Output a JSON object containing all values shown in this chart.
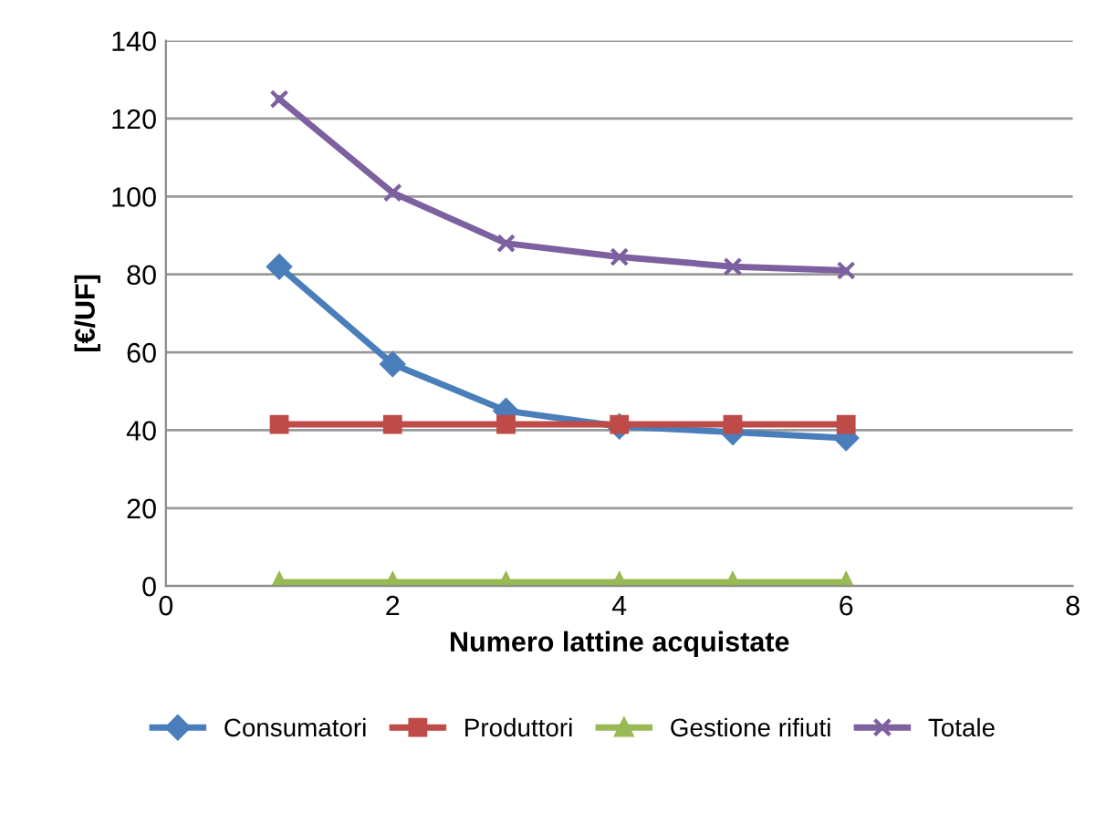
{
  "chart_data": {
    "type": "line",
    "xlabel": "Numero lattine acquistate",
    "ylabel": "[€/UF]",
    "xlim": [
      0,
      8
    ],
    "xticks": [
      0,
      2,
      4,
      6,
      8
    ],
    "ylim": [
      0,
      140
    ],
    "yticks": [
      0,
      20,
      40,
      60,
      80,
      100,
      120,
      140
    ],
    "grid": "y",
    "legend": "bottom",
    "line_style": "solid",
    "x": [
      1,
      2,
      3,
      4,
      5,
      6
    ],
    "series": [
      {
        "name": "Consumatori",
        "color": "#4a7ebb",
        "marker": "diamond",
        "values": [
          82,
          57,
          45,
          41,
          39.5,
          38
        ]
      },
      {
        "name": "Produttori",
        "color": "#be4b48",
        "marker": "square",
        "values": [
          41.5,
          41.5,
          41.5,
          41.5,
          41.5,
          41.5
        ]
      },
      {
        "name": "Gestione rifiuti",
        "color": "#98b954",
        "marker": "triangle",
        "values": [
          1,
          1,
          1,
          1,
          1,
          1
        ]
      },
      {
        "name": "Totale",
        "color": "#7d60a0",
        "marker": "cross",
        "values": [
          125,
          101,
          88,
          84.5,
          82,
          81
        ]
      }
    ]
  }
}
